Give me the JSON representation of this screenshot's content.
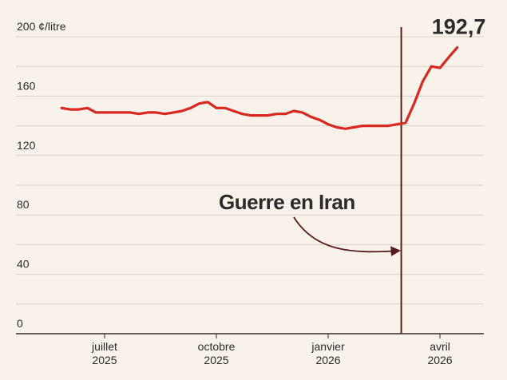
{
  "chart_data": {
    "type": "line",
    "categories": [
      null,
      null,
      null,
      null,
      null,
      "juillet 2025",
      null,
      null,
      null,
      null,
      null,
      null,
      null,
      null,
      null,
      null,
      null,
      null,
      "octobre 2025",
      null,
      null,
      null,
      null,
      null,
      null,
      null,
      null,
      null,
      null,
      null,
      null,
      "janvier 2026",
      null,
      null,
      null,
      null,
      null,
      null,
      null,
      null,
      null,
      null,
      null,
      null,
      "avril 2026",
      null,
      null
    ],
    "series": [
      {
        "color": "#d8281f",
        "values": [
          152,
          151,
          151,
          152,
          149,
          149,
          149,
          149,
          149,
          148,
          149,
          149,
          148,
          149,
          150,
          152,
          155,
          156,
          152,
          152,
          150,
          148,
          147,
          147,
          147,
          148,
          148,
          150,
          149,
          146,
          144,
          141,
          139,
          138,
          139,
          140,
          140,
          140,
          140,
          141,
          142,
          155,
          170,
          180,
          179,
          186,
          192.7
        ],
        "value_labels": [
          null,
          null,
          null,
          null,
          null,
          null,
          null,
          null,
          null,
          null,
          null,
          null,
          null,
          null,
          null,
          null,
          null,
          null,
          null,
          null,
          null,
          null,
          null,
          null,
          null,
          null,
          null,
          null,
          null,
          null,
          null,
          null,
          null,
          null,
          null,
          null,
          null,
          null,
          null,
          null,
          null,
          null,
          null,
          null,
          null,
          null,
          "192,7"
        ]
      }
    ],
    "ylim": [
      0,
      200
    ],
    "yticks": [
      0,
      40,
      80,
      120,
      160,
      {
        "value": 200,
        "label": "200 ¢/litre"
      }
    ],
    "yminor": [
      20,
      60,
      100,
      140,
      180
    ],
    "grid": true,
    "annotation": {
      "text": "Guerre en Iran",
      "index": 39.5,
      "color": "#5b1a1e"
    }
  }
}
